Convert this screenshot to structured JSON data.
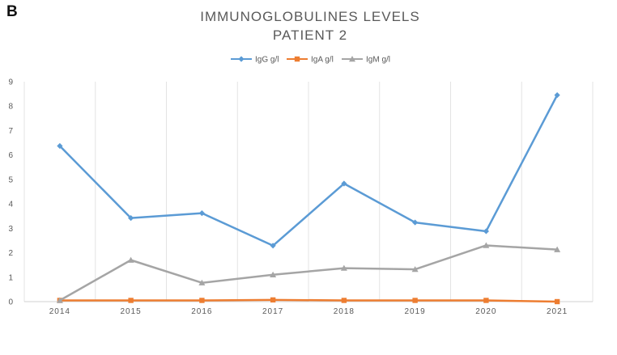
{
  "panel_label": "B",
  "chart_data": {
    "type": "line",
    "title": "IMMUNOGLOBULINES LEVELS",
    "subtitle": "PATIENT 2",
    "categories": [
      "2014",
      "2015",
      "2016",
      "2017",
      "2018",
      "2019",
      "2020",
      "2021"
    ],
    "ylim": [
      0,
      9
    ],
    "yticks": [
      0,
      1,
      2,
      3,
      4,
      5,
      6,
      7,
      8,
      9
    ],
    "xlabel": "",
    "ylabel": "",
    "grid": "vertical",
    "legend_position": "top-center",
    "series": [
      {
        "name": "IgG g/l",
        "color": "#5B9BD5",
        "marker": "diamond",
        "values": [
          6.37,
          3.42,
          3.62,
          2.29,
          4.83,
          3.24,
          2.88,
          8.45
        ]
      },
      {
        "name": "IgA g/l",
        "color": "#ED7D31",
        "marker": "square",
        "values": [
          0.05,
          0.05,
          0.05,
          0.07,
          0.05,
          0.05,
          0.05,
          0.0
        ]
      },
      {
        "name": "IgM g/l",
        "color": "#A5A5A5",
        "marker": "triangle",
        "values": [
          0.05,
          1.7,
          0.77,
          1.1,
          1.37,
          1.32,
          2.3,
          2.13
        ]
      }
    ]
  }
}
